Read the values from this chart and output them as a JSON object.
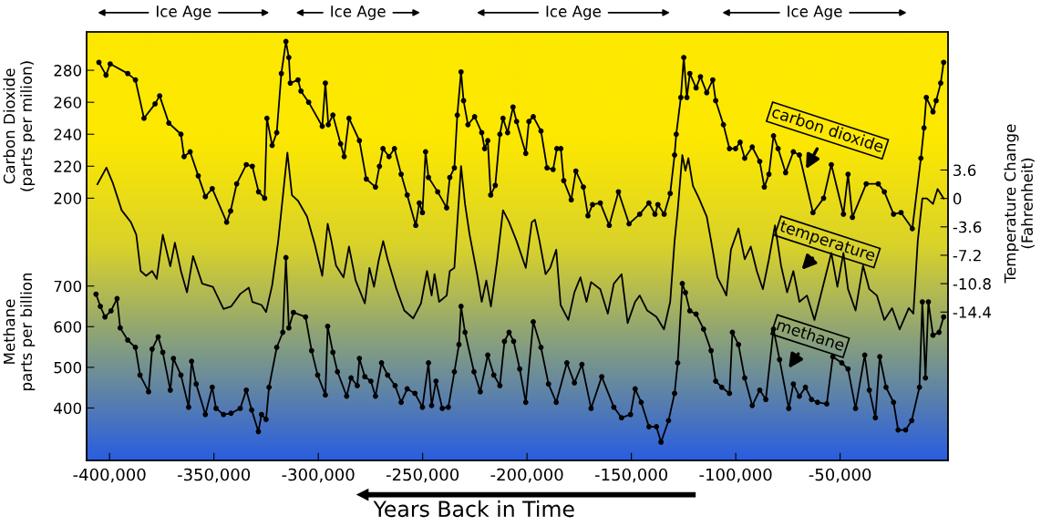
{
  "chart_data": {
    "type": "line",
    "xlabel": "Years Back in Time",
    "ylabel": "Carbon Dioxide\n(parts per milion)",
    "y2label": "Temperature Change\n(Fahrenheit)",
    "y3label": "Methane\nparts per billion",
    "annotations": [
      "Ice Age",
      "Ice Age",
      "Ice Age",
      "Ice Age"
    ],
    "xlim": [
      -411000,
      1700
    ],
    "xticks": [
      {
        "value": -400000,
        "label": "-400,000"
      },
      {
        "value": -350000,
        "label": "-350,000"
      },
      {
        "value": -300000,
        "label": "-300,000"
      },
      {
        "value": -250000,
        "label": "-250,000"
      },
      {
        "value": -200000,
        "label": "-200,000"
      },
      {
        "value": -150000,
        "label": "-150,000"
      },
      {
        "value": -100000,
        "label": "-100,000"
      },
      {
        "value": -50000,
        "label": "-50,000"
      }
    ],
    "ylim": [
      36,
      304
    ],
    "yticks": [
      200,
      220,
      240,
      260,
      280
    ],
    "y2lim": [
      -33.2,
      21.1
    ],
    "y2ticks": [
      3.6,
      0,
      -3.6,
      -7.2,
      -10.8,
      -14.4
    ],
    "y3lim": [
      271,
      1325
    ],
    "y3ticks": [
      400,
      500,
      600,
      700
    ],
    "grid": false,
    "legend": false,
    "line_style": "solid",
    "series": [
      {
        "name": "carbon dioxide",
        "color": "#000000",
        "axis": "y",
        "marker": "circle",
        "x": [
          -405100,
          -401700,
          -399700,
          -391300,
          -387600,
          -383500,
          -378200,
          -376000,
          -371600,
          -365800,
          -364300,
          -361400,
          -357500,
          -354100,
          -350800,
          -343900,
          -342000,
          -339100,
          -334500,
          -331600,
          -328600,
          -325700,
          -324600,
          -322100,
          -319900,
          -317700,
          -315500,
          -314100,
          -313400,
          -309700,
          -308300,
          -304600,
          -298100,
          -296600,
          -295200,
          -293000,
          -289300,
          -287600,
          -285300,
          -280300,
          -277000,
          -272600,
          -270700,
          -269000,
          -266100,
          -263500,
          -260300,
          -257400,
          -253300,
          -251600,
          -250100,
          -248600,
          -247200,
          -242800,
          -238500,
          -237000,
          -234800,
          -233400,
          -231600,
          -230400,
          -228300,
          -225100,
          -221700,
          -220300,
          -218800,
          -217400,
          -215200,
          -213000,
          -211500,
          -209300,
          -206700,
          -205000,
          -200600,
          -199100,
          -197000,
          -193300,
          -190400,
          -187500,
          -185700,
          -183800,
          -182400,
          -178800,
          -176600,
          -173000,
          -170800,
          -168600,
          -164900,
          -160600,
          -156200,
          -151100,
          -146000,
          -141600,
          -138700,
          -137300,
          -134300,
          -131400,
          -129300,
          -128500,
          -126300,
          -124900,
          -123400,
          -122000,
          -119000,
          -116900,
          -113900,
          -111000,
          -109600,
          -105900,
          -103000,
          -100100,
          -97900,
          -95700,
          -92100,
          -88500,
          -86300,
          -84100,
          -81900,
          -79700,
          -76100,
          -72400,
          -69500,
          -63000,
          -57900,
          -54200,
          -48400,
          -46200,
          -44100,
          -37500,
          -31700,
          -28800,
          -24400,
          -20800,
          -15400,
          -11300,
          -9800,
          -8700,
          -5500,
          -4000,
          -1800,
          -400
        ],
        "values": [
          285,
          277,
          284,
          278,
          274,
          250,
          259,
          264,
          247,
          240,
          226,
          229,
          214,
          201,
          206,
          185,
          192,
          209,
          221,
          220,
          204,
          200,
          250,
          233,
          241,
          278,
          298,
          288,
          272,
          274,
          267,
          260,
          245,
          272,
          246,
          252,
          234,
          226,
          250,
          236,
          212,
          207,
          220,
          231,
          226,
          231,
          215,
          202,
          183,
          197,
          191,
          229,
          213,
          204,
          194,
          213,
          219,
          252,
          279,
          261,
          246,
          251,
          241,
          231,
          236,
          202,
          208,
          240,
          250,
          241,
          257,
          248,
          228,
          248,
          251,
          242,
          219,
          218,
          231,
          231,
          211,
          199,
          217,
          207,
          189,
          196,
          197,
          183,
          204,
          184,
          190,
          197,
          190,
          196,
          190,
          203,
          227,
          240,
          263,
          288,
          263,
          278,
          269,
          276,
          266,
          274,
          261,
          246,
          231,
          231,
          235,
          225,
          232,
          223,
          207,
          215,
          239,
          231,
          216,
          229,
          227,
          191,
          200,
          221,
          190,
          215,
          188,
          209,
          209,
          204,
          190,
          191,
          181,
          225,
          244,
          263,
          254,
          261,
          272,
          285
        ]
      },
      {
        "name": "temperature",
        "color": "#000000",
        "axis": "y2",
        "marker": "none",
        "x": [
          -405800,
          -401500,
          -398500,
          -394200,
          -389800,
          -387200,
          -385100,
          -382500,
          -379600,
          -377400,
          -374500,
          -370900,
          -368700,
          -365800,
          -362900,
          -360000,
          -355600,
          -350500,
          -345400,
          -341800,
          -337400,
          -333300,
          -331600,
          -327200,
          -325000,
          -322100,
          -319200,
          -314800,
          -312600,
          -309700,
          -305400,
          -301700,
          -298100,
          -295500,
          -293700,
          -291500,
          -287900,
          -285300,
          -282100,
          -277700,
          -275500,
          -273300,
          -271100,
          -268900,
          -266800,
          -262500,
          -258800,
          -254500,
          -250800,
          -247900,
          -245700,
          -244300,
          -242100,
          -238500,
          -237000,
          -234800,
          -231600,
          -229700,
          -227500,
          -223900,
          -221700,
          -219500,
          -217300,
          -214400,
          -211500,
          -208600,
          -205000,
          -200600,
          -197700,
          -196200,
          -194000,
          -191100,
          -188900,
          -186000,
          -183900,
          -180200,
          -177300,
          -174400,
          -171500,
          -169300,
          -164900,
          -161300,
          -158400,
          -154700,
          -151800,
          -148200,
          -146000,
          -142400,
          -138000,
          -134400,
          -131400,
          -129300,
          -127800,
          -125600,
          -124100,
          -122700,
          -120500,
          -117600,
          -113900,
          -111800,
          -108800,
          -105900,
          -104500,
          -102300,
          -98700,
          -95700,
          -92800,
          -89900,
          -87000,
          -84100,
          -81200,
          -78300,
          -75400,
          -72400,
          -69500,
          -65900,
          -62300,
          -59300,
          -54200,
          -51300,
          -48400,
          -46200,
          -42600,
          -39000,
          -36000,
          -32400,
          -28800,
          -25100,
          -21500,
          -17100,
          -14900,
          -12800,
          -10600,
          -8400,
          -5500,
          -3300,
          -400
        ],
        "values": [
          1.8,
          3.9,
          2.0,
          -1.5,
          -3.0,
          -4.6,
          -9.2,
          -9.8,
          -9.2,
          -10.2,
          -4.6,
          -8.6,
          -5.6,
          -9.2,
          -11.9,
          -7.3,
          -10.8,
          -11.2,
          -14.0,
          -13.7,
          -12.1,
          -11.3,
          -13.1,
          -13.5,
          -14.4,
          -11.0,
          -5.4,
          5.8,
          0.4,
          -0.3,
          -2.3,
          -5.8,
          -9.8,
          -3.2,
          -5.4,
          -8.5,
          -10.0,
          -6.1,
          -10.4,
          -13.3,
          -8.8,
          -11.2,
          -7.9,
          -5.4,
          -7.7,
          -11.5,
          -14.2,
          -15.2,
          -13.3,
          -9.2,
          -12.3,
          -9.6,
          -13.1,
          -12.3,
          -9.2,
          -8.8,
          4.1,
          -0.7,
          -4.6,
          -9.6,
          -13.1,
          -10.4,
          -13.7,
          -8.1,
          -1.5,
          -3.0,
          -5.4,
          -8.8,
          -3.0,
          -2.7,
          -5.4,
          -9.6,
          -8.8,
          -6.5,
          -13.5,
          -15.4,
          -11.9,
          -10.0,
          -13.1,
          -10.6,
          -11.5,
          -14.6,
          -10.8,
          -9.6,
          -15.8,
          -13.1,
          -12.3,
          -14.2,
          -15.0,
          -16.6,
          -13.1,
          -5.4,
          -1.5,
          5.5,
          3.5,
          5.1,
          1.6,
          0.0,
          -2.3,
          -5.4,
          -10.0,
          -11.5,
          -12.3,
          -6.5,
          -3.8,
          -7.7,
          -6.1,
          -9.2,
          -11.5,
          -7.7,
          -3.4,
          -8.5,
          -11.9,
          -9.2,
          -13.1,
          -12.3,
          -15.4,
          -12.3,
          -6.9,
          -11.2,
          -6.9,
          -11.5,
          -14.2,
          -8.5,
          -11.5,
          -12.3,
          -15.4,
          -13.9,
          -16.6,
          -13.9,
          -14.6,
          -5.4,
          0.0,
          0.0,
          -0.7,
          1.2,
          0.0
        ]
      },
      {
        "name": "methane",
        "color": "#000000",
        "axis": "y3",
        "marker": "circle",
        "x": [
          -406500,
          -404400,
          -402200,
          -399300,
          -396400,
          -394900,
          -391300,
          -387600,
          -385400,
          -381300,
          -379600,
          -376700,
          -374500,
          -370900,
          -369400,
          -365800,
          -362100,
          -360700,
          -358500,
          -354100,
          -350800,
          -349000,
          -345400,
          -341800,
          -337400,
          -334500,
          -331900,
          -328700,
          -327200,
          -325000,
          -323600,
          -319900,
          -317000,
          -315500,
          -314100,
          -311900,
          -306100,
          -303200,
          -300300,
          -296600,
          -295500,
          -293000,
          -290800,
          -286400,
          -284300,
          -281300,
          -280300,
          -277700,
          -274800,
          -272600,
          -269700,
          -266800,
          -263200,
          -260300,
          -257400,
          -253700,
          -250100,
          -247200,
          -245700,
          -243600,
          -240600,
          -237700,
          -234800,
          -232600,
          -231600,
          -229700,
          -225400,
          -222400,
          -218800,
          -215900,
          -213000,
          -210800,
          -208600,
          -206400,
          -203500,
          -200600,
          -197000,
          -193300,
          -189700,
          -186000,
          -180900,
          -177300,
          -173700,
          -169300,
          -164200,
          -158400,
          -154700,
          -150400,
          -148200,
          -145300,
          -141600,
          -138000,
          -135800,
          -132200,
          -129300,
          -127800,
          -125600,
          -124100,
          -122000,
          -119000,
          -115400,
          -111800,
          -109600,
          -106700,
          -103000,
          -101600,
          -98700,
          -95700,
          -92100,
          -88500,
          -85600,
          -81900,
          -79000,
          -74600,
          -72400,
          -69500,
          -66600,
          -63700,
          -60800,
          -56400,
          -53500,
          -49200,
          -46200,
          -42600,
          -38200,
          -36000,
          -33100,
          -31000,
          -28000,
          -24400,
          -22200,
          -18600,
          -15700,
          -12000,
          -10600,
          -9100,
          -7700,
          -5500,
          -2600,
          -400
        ],
        "values": [
          680,
          650,
          624,
          639,
          669,
          597,
          567,
          549,
          481,
          440,
          545,
          575,
          537,
          444,
          522,
          481,
          402,
          515,
          459,
          384,
          451,
          399,
          384,
          387,
          399,
          444,
          395,
          342,
          384,
          372,
          451,
          549,
          586,
          770,
          597,
          635,
          624,
          541,
          481,
          432,
          601,
          537,
          489,
          429,
          474,
          455,
          522,
          477,
          466,
          429,
          511,
          481,
          455,
          414,
          447,
          436,
          402,
          511,
          406,
          466,
          399,
          402,
          489,
          556,
          650,
          586,
          489,
          440,
          530,
          481,
          455,
          564,
          586,
          564,
          496,
          414,
          612,
          549,
          459,
          414,
          511,
          462,
          507,
          399,
          477,
          402,
          376,
          384,
          447,
          414,
          354,
          354,
          316,
          369,
          436,
          511,
          706,
          684,
          639,
          631,
          594,
          541,
          466,
          451,
          436,
          586,
          556,
          474,
          406,
          444,
          421,
          594,
          519,
          399,
          459,
          429,
          451,
          421,
          414,
          410,
          526,
          511,
          496,
          399,
          530,
          444,
          376,
          526,
          451,
          414,
          346,
          346,
          369,
          451,
          661,
          474,
          661,
          579,
          586,
          624
        ]
      }
    ]
  }
}
